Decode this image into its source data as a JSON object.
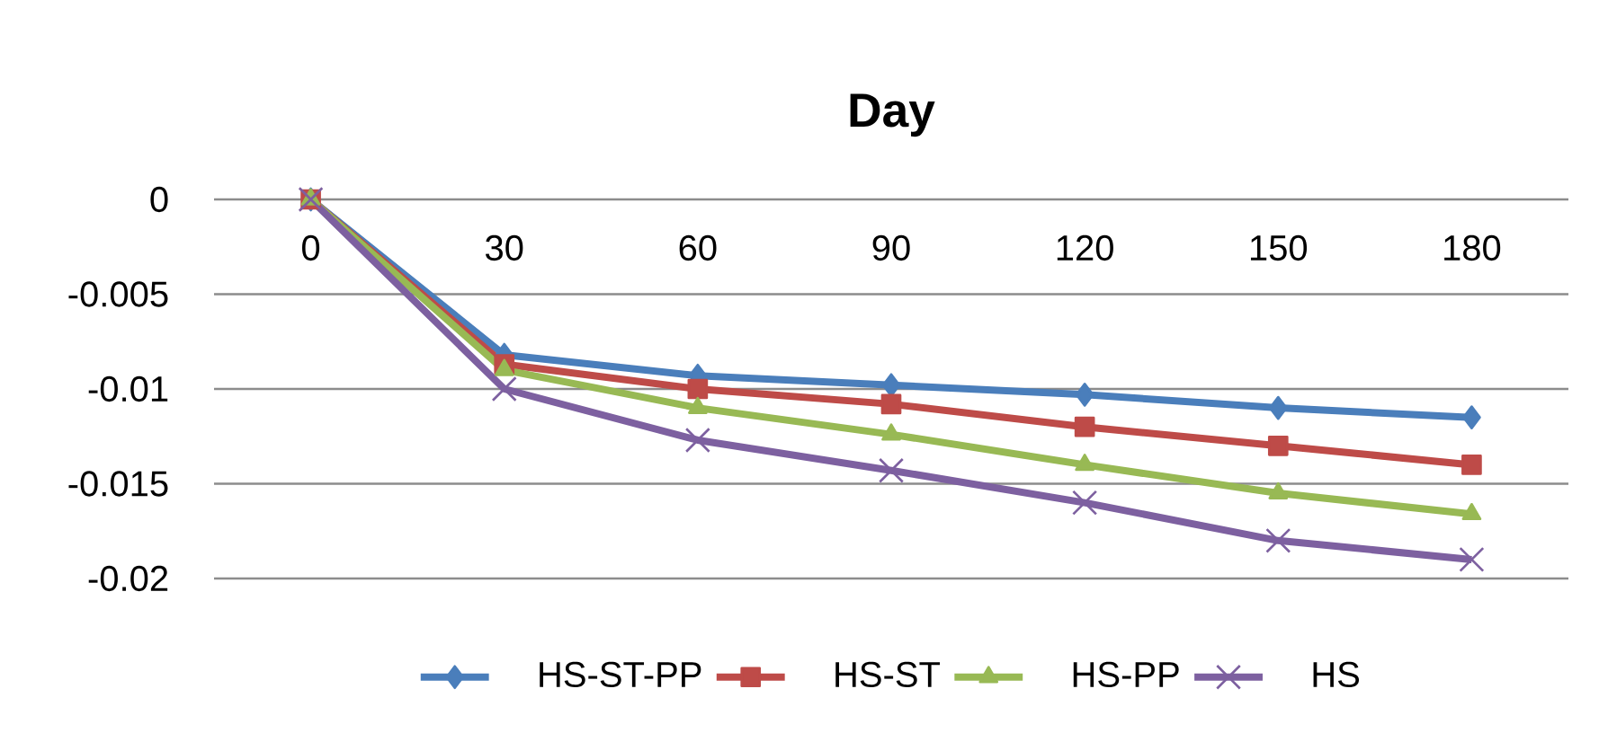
{
  "chart_data": {
    "type": "line",
    "xlabel": "Day",
    "categories": [
      "0",
      "30",
      "60",
      "90",
      "120",
      "150",
      "180"
    ],
    "series": [
      {
        "name": "HS-ST-PP",
        "color": "#4a7ebb",
        "marker": "diamond",
        "values": [
          0,
          -0.0082,
          -0.0093,
          -0.0098,
          -0.0103,
          -0.011,
          -0.0115
        ]
      },
      {
        "name": "HS-ST",
        "color": "#be4b48",
        "marker": "square",
        "values": [
          0,
          -0.0087,
          -0.01,
          -0.0108,
          -0.012,
          -0.013,
          -0.014
        ]
      },
      {
        "name": "HS-PP",
        "color": "#98b954",
        "marker": "triangle",
        "values": [
          0,
          -0.009,
          -0.011,
          -0.0124,
          -0.014,
          -0.0155,
          -0.0166
        ]
      },
      {
        "name": "HS",
        "color": "#7d60a0",
        "marker": "cross",
        "values": [
          0,
          -0.01,
          -0.0127,
          -0.0143,
          -0.016,
          -0.018,
          -0.019
        ]
      }
    ],
    "ylim": [
      -0.02,
      0
    ],
    "yticks": [
      0,
      -0.005,
      -0.01,
      -0.015,
      -0.02
    ],
    "grid": "y",
    "legend": "bottom",
    "line_style": "solid"
  }
}
